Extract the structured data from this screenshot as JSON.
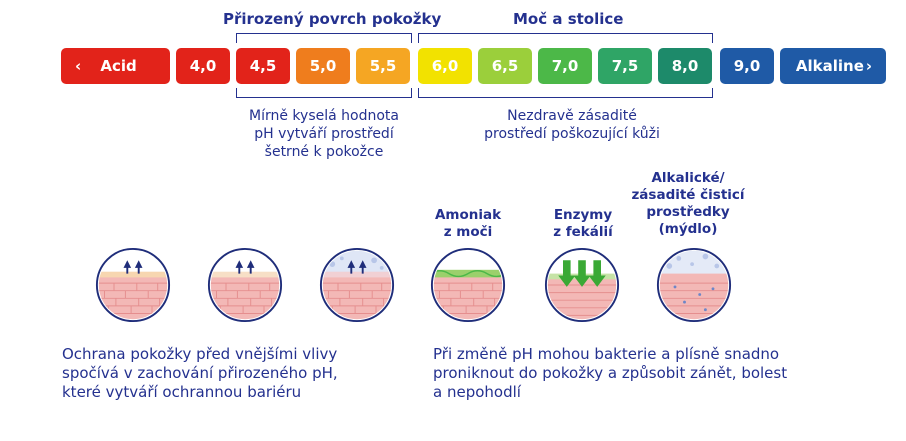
{
  "headings": {
    "natural_skin": "Přirozený povrch pokožky",
    "urine_stool": "Moč a stolice"
  },
  "scale": [
    {
      "label": "Acid",
      "color": "#e2231a",
      "kind": "start",
      "icon": "chevron-left-icon"
    },
    {
      "label": "4,0",
      "color": "#e2231a"
    },
    {
      "label": "4,5",
      "color": "#e2231a"
    },
    {
      "label": "5,0",
      "color": "#ef7d1d"
    },
    {
      "label": "5,5",
      "color": "#f5a623"
    },
    {
      "label": "6,0",
      "color": "#f2e200"
    },
    {
      "label": "6,5",
      "color": "#9bcf3b"
    },
    {
      "label": "7,0",
      "color": "#4cb848"
    },
    {
      "label": "7,5",
      "color": "#2fa566"
    },
    {
      "label": "8,0",
      "color": "#1d8a6a"
    },
    {
      "label": "9,0",
      "color": "#1f5aa6"
    },
    {
      "label": "Alkaline",
      "color": "#1f5aa6",
      "kind": "end",
      "icon": "chevron-right-icon"
    }
  ],
  "notes": {
    "left": [
      "Mírně kyselá hodnota",
      "pH vytváří prostředí",
      "šetrné k pokožce"
    ],
    "right": [
      "Nezdravě zásadité",
      "prostředí poškozující kůži"
    ]
  },
  "conditions": {
    "ammonia": [
      "Amoniak",
      "z moči"
    ],
    "enzymes": [
      "Enzymy",
      "z fekálií"
    ],
    "alkaline": [
      "Alkalické/",
      "zásadité čisticí",
      "prostředky",
      "(mýdlo)"
    ]
  },
  "captions": {
    "left": [
      "Ochrana pokožky před vnějšími vlivy",
      "spočívá v zachování přirozeného pH,",
      "které vytváří ochrannou bariéru"
    ],
    "right": [
      "Při změně pH mohou bakterie a plísně snadno",
      "proniknout do pokožky a způsobit zánět, bolest",
      "a nepohodlí"
    ]
  },
  "colors": {
    "text": "#24318f",
    "skin": "#f3b8b6",
    "ring": "#1f2d7a",
    "green_layer": "#9bd06b",
    "arrow_green": "#3aa935",
    "bubble": "#b8c6e8"
  }
}
